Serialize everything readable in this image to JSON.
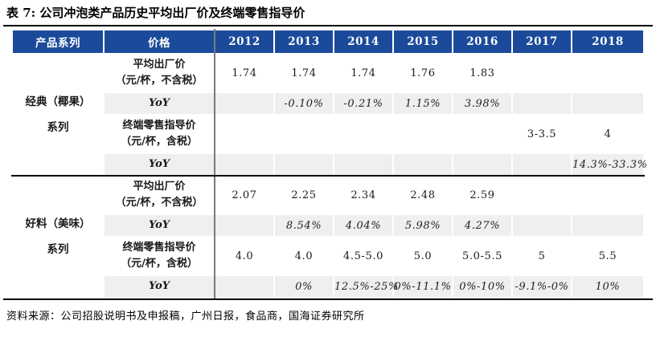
{
  "title": "表 7: 公司冲泡类产品历史平均出厂价及终端零售指导价",
  "source": "资料来源：公司招股说明书及申报稿，广州日报，食品商，国海证券研究所",
  "colors": {
    "header_bg": "#1B4A9B",
    "header_text": "#FFFFFF",
    "stripe": "#EFEFEF",
    "divider": "#7A7A7A",
    "rule": "#000000"
  },
  "table": {
    "headers": [
      "产品系列",
      "价格",
      "2012",
      "2013",
      "2014",
      "2015",
      "2016",
      "2017",
      "2018"
    ],
    "groups": [
      {
        "name_line1": "经典（椰果）",
        "name_line2": "系列",
        "rows": [
          {
            "type": "price",
            "label_line1": "平均出厂价",
            "label_line2": "（元/杯，不含税）",
            "values": [
              "1.74",
              "1.74",
              "1.74",
              "1.76",
              "1.83",
              "",
              ""
            ]
          },
          {
            "type": "yoy",
            "label": "YoY",
            "values": [
              "",
              "-0.10%",
              "-0.21%",
              "1.15%",
              "3.98%",
              "",
              ""
            ]
          },
          {
            "type": "price",
            "label_line1": "终端零售指导价",
            "label_line2": "（元/杯，含税）",
            "values": [
              "",
              "",
              "",
              "",
              "",
              "3-3.5",
              "4"
            ]
          },
          {
            "type": "yoy",
            "label": "YoY",
            "values": [
              "",
              "",
              "",
              "",
              "",
              "",
              "14.3%-33.3%"
            ]
          }
        ]
      },
      {
        "name_line1": "好料（美味）",
        "name_line2": "系列",
        "rows": [
          {
            "type": "price",
            "label_line1": "平均出厂价",
            "label_line2": "（元/杯，不含税）",
            "values": [
              "2.07",
              "2.25",
              "2.34",
              "2.48",
              "2.59",
              "",
              ""
            ]
          },
          {
            "type": "yoy",
            "label": "YoY",
            "values": [
              "",
              "8.54%",
              "4.04%",
              "5.98%",
              "4.27%",
              "",
              ""
            ]
          },
          {
            "type": "price",
            "label_line1": "终端零售指导价",
            "label_line2": "（元/杯，含税）",
            "values": [
              "4.0",
              "4.0",
              "4.5-5.0",
              "5.0",
              "5.0-5.5",
              "5",
              "5.5"
            ]
          },
          {
            "type": "yoy",
            "label": "YoY",
            "values": [
              "",
              "0%",
              "12.5%-25%",
              "0%-11.1%",
              "0%-10%",
              "-9.1%-0%",
              "10%"
            ]
          }
        ]
      }
    ]
  }
}
